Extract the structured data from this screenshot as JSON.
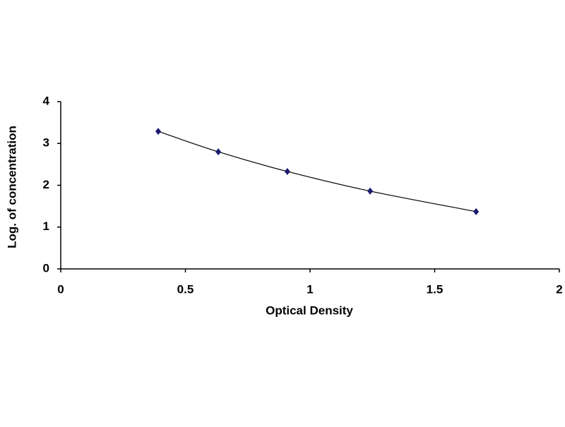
{
  "chart_data": {
    "type": "scatter",
    "x_label": "Optical Density",
    "y_label": "Log. of concentration",
    "series": [
      {
        "x": [
          0.391,
          0.632,
          0.909,
          1.241,
          1.666
        ],
        "values": [
          3.29,
          2.8,
          2.33,
          1.86,
          1.37
        ],
        "color": "#1a1a6e",
        "line_color": "#000000",
        "smooth": true
      }
    ],
    "xlim": [
      0,
      2
    ],
    "xticks": [
      0,
      0.5,
      1,
      1.5,
      2
    ],
    "ylim": [
      0,
      4
    ],
    "yticks": [
      0,
      1,
      2,
      3,
      4
    ],
    "grid": false
  }
}
